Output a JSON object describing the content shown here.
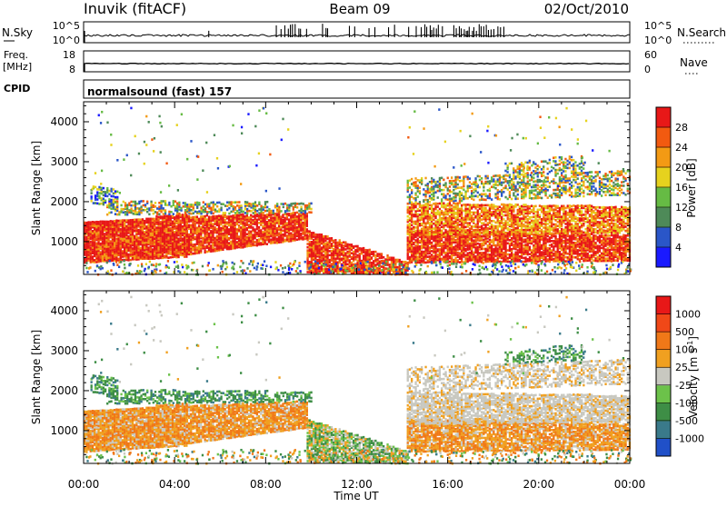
{
  "header": {
    "station": "Inuvik (fitACF)",
    "beam": "Beam 09",
    "date": "02/Oct/2010"
  },
  "top_panels": {
    "nsky": {
      "label": "N.Sky",
      "axis_labels": [
        "10^5",
        "10^0"
      ],
      "right_label": "N.Search",
      "right_axis_labels": [
        "10^5",
        "10^0"
      ]
    },
    "freq": {
      "label_line1": "Freq.",
      "label_line2": "[MHz]",
      "axis_labels": [
        "18",
        "8"
      ],
      "right_label": "Nave",
      "right_axis_labels": [
        "60",
        "0"
      ]
    },
    "cpid": {
      "label": "CPID",
      "text": "normalsound (fast) 157"
    }
  },
  "chart_data": [
    {
      "type": "heatmap",
      "title": "",
      "xlabel": "Time UT",
      "ylabel": "Slant Range [km]",
      "xlim_hours": [
        0,
        24
      ],
      "ylim": [
        180,
        4500
      ],
      "x_ticks": [
        "00:00",
        "04:00",
        "08:00",
        "12:00",
        "16:00",
        "20:00",
        "00:00"
      ],
      "y_ticks": [
        1000,
        2000,
        3000,
        4000
      ],
      "colorbar": {
        "label": "Power [dB]",
        "ticks": [
          "4",
          "8",
          "12",
          "16",
          "20",
          "24",
          "28"
        ],
        "colors": [
          "#1a1aff",
          "#2a56c8",
          "#4e8a58",
          "#66bb44",
          "#e6d21e",
          "#f39a14",
          "#f25a10",
          "#e81818"
        ]
      }
    },
    {
      "type": "heatmap",
      "title": "",
      "xlabel": "Time UT",
      "ylabel": "Slant Range [km]",
      "xlim_hours": [
        0,
        24
      ],
      "ylim": [
        180,
        4500
      ],
      "x_ticks": [
        "00:00",
        "04:00",
        "08:00",
        "12:00",
        "16:00",
        "20:00",
        "00:00"
      ],
      "y_ticks": [
        1000,
        2000,
        3000,
        4000
      ],
      "colorbar": {
        "label": "Velocity [m s",
        "label_sup": "-1",
        "label_end": "]",
        "ticks": [
          "1000",
          "500",
          "100",
          "25",
          "-25",
          "-100",
          "-500",
          "-1000"
        ],
        "colors": [
          "#2050c8",
          "#3a7a8a",
          "#3e8e46",
          "#6cc24a",
          "#c8c8c0",
          "#f0a020",
          "#f07818",
          "#f04818",
          "#e81818"
        ]
      }
    }
  ]
}
